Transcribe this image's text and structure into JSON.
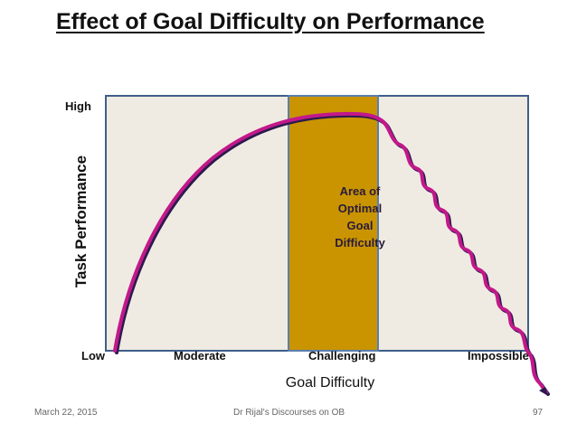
{
  "slide": {
    "title": "Effect of Goal Difficulty on Performance"
  },
  "diagram": {
    "y_axis": {
      "label": "Task Performance",
      "high_label": "High",
      "low_label": "Low"
    },
    "x_axis": {
      "label": "Goal Difficulty",
      "categories": [
        "Moderate",
        "Challenging",
        "Impossible"
      ]
    },
    "optimal_zone_label": [
      "Area of",
      "Optimal",
      "Goal",
      "Difficulty"
    ],
    "colors": {
      "plot_background": "#efebe2",
      "plot_border": "#3f5e8a",
      "optimal_zone_fill": "#c99400",
      "optimal_zone_border": "#5b7fae",
      "curve_main": "#c2188a",
      "curve_shadow": "#2b1a4d"
    }
  },
  "footer": {
    "date": "March 22, 2015",
    "source": "Dr Rijal's Discourses on OB",
    "page": "97"
  }
}
